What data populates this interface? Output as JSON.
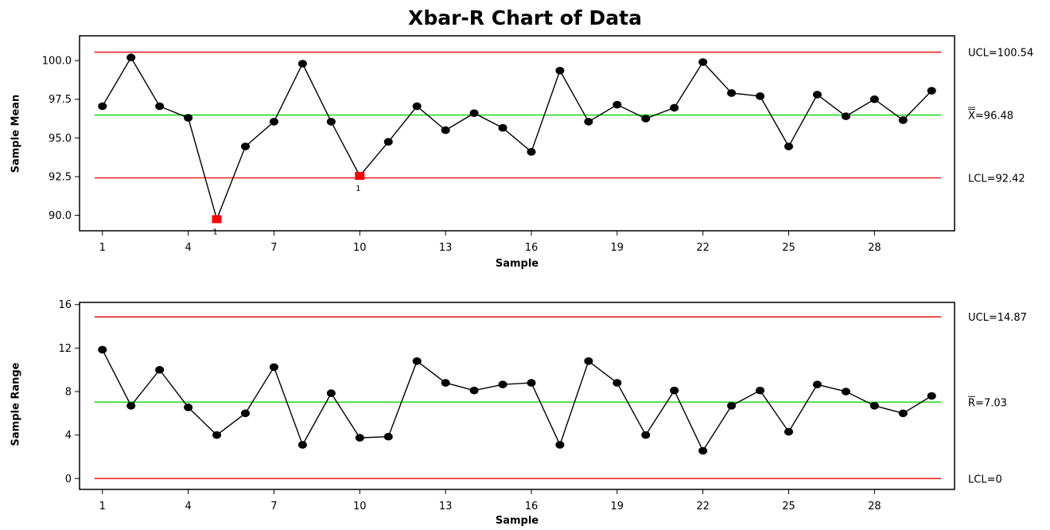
{
  "chart_data": [
    {
      "type": "line",
      "title": "Xbar-R Chart of Data",
      "xlabel": "Sample",
      "ylabel": "Sample Mean",
      "xlim": [
        0.2,
        30.8
      ],
      "ylim": [
        89,
        101.6
      ],
      "x_ticks": [
        1,
        4,
        7,
        10,
        13,
        16,
        19,
        22,
        25,
        28
      ],
      "y_ticks": [
        90.0,
        92.5,
        95.0,
        97.5,
        100.0
      ],
      "y_tick_labels": [
        "90.0",
        "92.5",
        "95.0",
        "97.5",
        "100.0"
      ],
      "x": [
        1,
        2,
        3,
        4,
        5,
        6,
        7,
        8,
        9,
        10,
        11,
        12,
        13,
        14,
        15,
        16,
        17,
        18,
        19,
        20,
        21,
        22,
        23,
        24,
        25,
        26,
        27,
        28,
        29,
        30
      ],
      "values": [
        97.05,
        100.2,
        97.05,
        96.3,
        89.75,
        94.45,
        96.05,
        99.8,
        96.05,
        92.55,
        94.75,
        97.05,
        95.5,
        96.6,
        95.65,
        94.1,
        99.35,
        96.05,
        97.15,
        96.25,
        96.95,
        99.9,
        97.9,
        97.7,
        94.45,
        97.8,
        96.4,
        97.5,
        96.15,
        98.05
      ],
      "out_of_control": [
        {
          "x": 5,
          "flag": "1"
        },
        {
          "x": 10,
          "flag": "1"
        }
      ],
      "limits": {
        "ucl": 100.54,
        "center": 96.48,
        "lcl": 92.42,
        "ucl_label": "UCL=100.54",
        "center_symbol": "X",
        "center_value": "=96.48",
        "lcl_label": "LCL=92.42"
      },
      "colors": {
        "limit": "#ee2222",
        "center": "#22dd22",
        "line": "#000000",
        "point": "#000000",
        "flagged": "#ff0000"
      }
    },
    {
      "type": "line",
      "title": "",
      "xlabel": "Sample",
      "ylabel": "Sample Range",
      "xlim": [
        0.2,
        30.8
      ],
      "ylim": [
        -1,
        16.2
      ],
      "x_ticks": [
        1,
        4,
        7,
        10,
        13,
        16,
        19,
        22,
        25,
        28
      ],
      "y_ticks": [
        0,
        4,
        8,
        12,
        16
      ],
      "y_tick_labels": [
        "0",
        "4",
        "8",
        "12",
        "16"
      ],
      "x": [
        1,
        2,
        3,
        4,
        5,
        6,
        7,
        8,
        9,
        10,
        11,
        12,
        13,
        14,
        15,
        16,
        17,
        18,
        19,
        20,
        21,
        22,
        23,
        24,
        25,
        26,
        27,
        28,
        29,
        30
      ],
      "values": [
        11.85,
        6.7,
        10.0,
        6.55,
        4.0,
        6.0,
        10.25,
        3.1,
        7.85,
        3.75,
        3.85,
        10.8,
        8.8,
        8.1,
        8.65,
        8.8,
        3.1,
        10.8,
        8.8,
        4.0,
        8.1,
        2.55,
        6.7,
        8.1,
        4.3,
        8.65,
        8.0,
        6.7,
        6.0,
        7.6
      ],
      "out_of_control": [],
      "limits": {
        "ucl": 14.87,
        "center": 7.03,
        "lcl": 0,
        "ucl_label": "UCL=14.87",
        "center_symbol": "R",
        "center_value": "=7.03",
        "lcl_label": "LCL=0"
      },
      "colors": {
        "limit": "#ee2222",
        "center": "#22dd22",
        "line": "#000000",
        "point": "#000000",
        "flagged": "#ff0000"
      }
    }
  ]
}
